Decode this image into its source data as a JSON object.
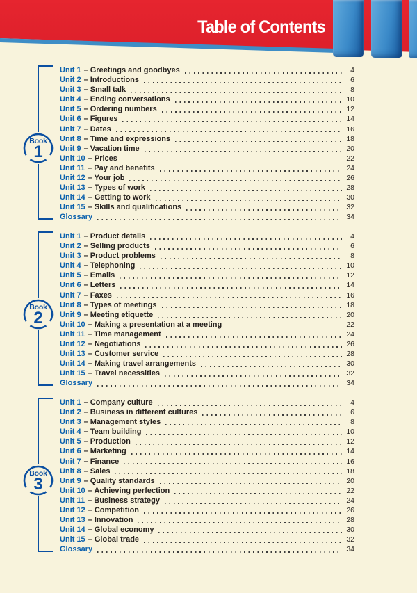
{
  "header": {
    "title": "Table of Contents"
  },
  "separator": "–",
  "colors": {
    "banner_red": "#e2222c",
    "stripe_blue": "#3e8dc6",
    "bar_blue_light": "#63acde",
    "bar_blue_dark": "#175a9f",
    "background_cream": "#f8f3dc",
    "accent_blue": "#0b4fa1",
    "unit_blue": "#0b61ad",
    "text_dark": "#26211e"
  },
  "books": [
    {
      "badge_label": "Book",
      "badge_number": "1",
      "entries": [
        {
          "label": "Unit 1",
          "title": "Greetings and goodbyes",
          "page": "4"
        },
        {
          "label": "Unit 2",
          "title": "Introductions",
          "page": "6"
        },
        {
          "label": "Unit 3",
          "title": "Small talk",
          "page": "8"
        },
        {
          "label": "Unit 4",
          "title": "Ending conversations",
          "page": "10"
        },
        {
          "label": "Unit 5",
          "title": "Ordering numbers",
          "page": "12"
        },
        {
          "label": "Unit 6",
          "title": "Figures",
          "page": "14"
        },
        {
          "label": "Unit 7",
          "title": "Dates",
          "page": "16"
        },
        {
          "label": "Unit 8",
          "title": "Time and expressions",
          "page": "18"
        },
        {
          "label": "Unit 9",
          "title": "Vacation time",
          "page": "20"
        },
        {
          "label": "Unit 10",
          "title": "Prices",
          "page": "22"
        },
        {
          "label": "Unit 11",
          "title": "Pay and benefits",
          "page": "24"
        },
        {
          "label": "Unit 12",
          "title": "Your job",
          "page": "26"
        },
        {
          "label": "Unit 13",
          "title": "Types of work",
          "page": "28"
        },
        {
          "label": "Unit 14",
          "title": "Getting to work",
          "page": "30"
        },
        {
          "label": "Unit 15",
          "title": "Skills and qualifications",
          "page": "32"
        },
        {
          "label": "Glossary",
          "title": null,
          "page": "34"
        }
      ]
    },
    {
      "badge_label": "Book",
      "badge_number": "2",
      "entries": [
        {
          "label": "Unit 1",
          "title": "Product details",
          "page": "4"
        },
        {
          "label": "Unit 2",
          "title": "Selling products",
          "page": "6"
        },
        {
          "label": "Unit 3",
          "title": "Product problems",
          "page": "8"
        },
        {
          "label": "Unit 4",
          "title": "Telephoning",
          "page": "10"
        },
        {
          "label": "Unit 5",
          "title": "Emails",
          "page": "12"
        },
        {
          "label": "Unit 6",
          "title": "Letters",
          "page": "14"
        },
        {
          "label": "Unit 7",
          "title": "Faxes",
          "page": "16"
        },
        {
          "label": "Unit 8",
          "title": "Types of meetings",
          "page": "18"
        },
        {
          "label": "Unit 9",
          "title": "Meeting etiquette",
          "page": "20"
        },
        {
          "label": "Unit 10",
          "title": "Making a presentation at a meeting",
          "page": "22"
        },
        {
          "label": "Unit 11",
          "title": "Time management",
          "page": "24"
        },
        {
          "label": "Unit 12",
          "title": "Negotiations",
          "page": "26"
        },
        {
          "label": "Unit 13",
          "title": "Customer service",
          "page": "28"
        },
        {
          "label": "Unit 14",
          "title": "Making travel arrangements",
          "page": "30"
        },
        {
          "label": "Unit 15",
          "title": "Travel necessities",
          "page": "32"
        },
        {
          "label": "Glossary",
          "title": null,
          "page": "34"
        }
      ]
    },
    {
      "badge_label": "Book",
      "badge_number": "3",
      "entries": [
        {
          "label": "Unit 1",
          "title": "Company culture",
          "page": "4"
        },
        {
          "label": "Unit 2",
          "title": "Business in different cultures",
          "page": "6"
        },
        {
          "label": "Unit 3",
          "title": "Management styles",
          "page": "8"
        },
        {
          "label": "Unit 4",
          "title": "Team building",
          "page": "10"
        },
        {
          "label": "Unit 5",
          "title": "Production",
          "page": "12"
        },
        {
          "label": "Unit 6",
          "title": "Marketing",
          "page": "14"
        },
        {
          "label": "Unit 7",
          "title": "Finance",
          "page": "16"
        },
        {
          "label": "Unit 8",
          "title": "Sales",
          "page": "18"
        },
        {
          "label": "Unit 9",
          "title": "Quality standards",
          "page": "20"
        },
        {
          "label": "Unit 10",
          "title": "Achieving perfection",
          "page": "22"
        },
        {
          "label": "Unit 11",
          "title": "Business strategy",
          "page": "24"
        },
        {
          "label": "Unit 12",
          "title": "Competition",
          "page": "26"
        },
        {
          "label": "Unit 13",
          "title": "Innovation",
          "page": "28"
        },
        {
          "label": "Unit 14",
          "title": "Global economy",
          "page": "30"
        },
        {
          "label": "Unit 15",
          "title": "Global trade",
          "page": "32"
        },
        {
          "label": "Glossary",
          "title": null,
          "page": "34"
        }
      ]
    }
  ]
}
